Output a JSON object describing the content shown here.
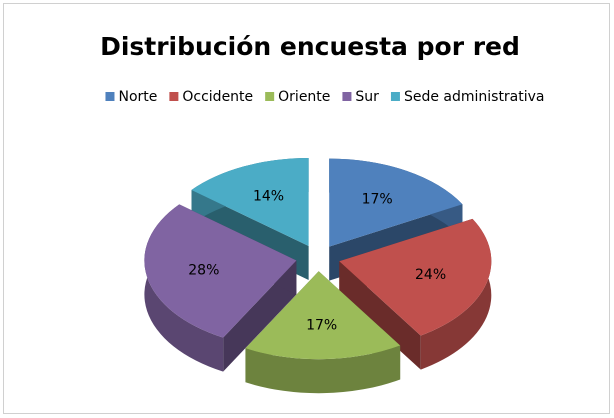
{
  "chart_data": {
    "type": "pie",
    "title": "Distribución encuesta por red",
    "categories": [
      "Norte",
      "Occidente",
      "Oriente",
      "Sur",
      "Sede administrativa"
    ],
    "values": [
      17,
      24,
      17,
      28,
      14
    ],
    "value_labels": [
      "17%",
      "24%",
      "17%",
      "28%",
      "14%"
    ],
    "colors": [
      "#4f81bd",
      "#c0504d",
      "#9bbb59",
      "#8064a2",
      "#4bacc6"
    ],
    "legend": "top"
  }
}
